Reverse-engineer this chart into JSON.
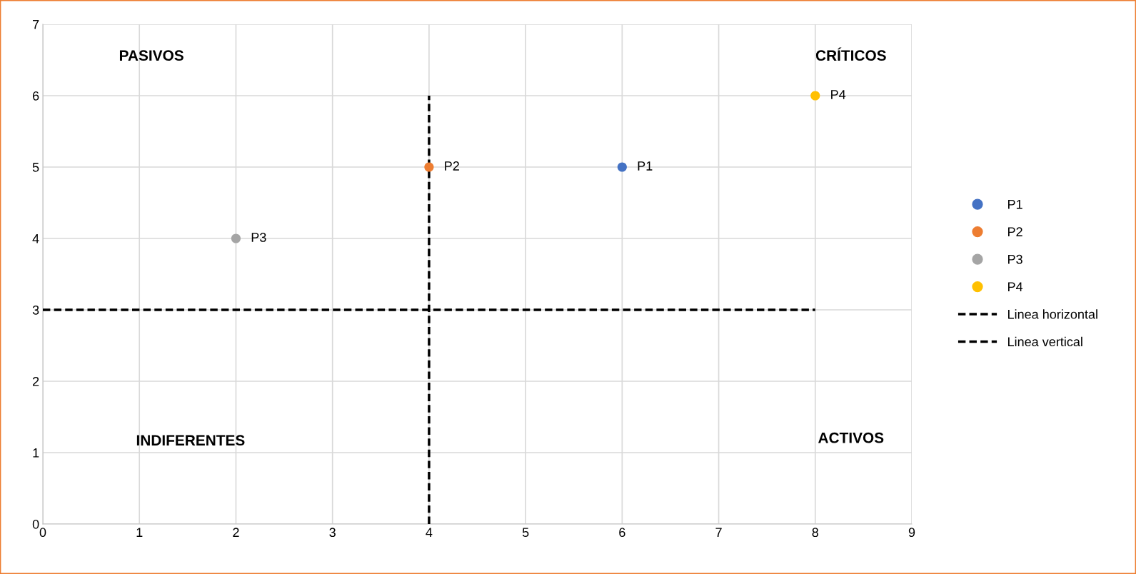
{
  "chart_data": {
    "type": "scatter",
    "series": [
      {
        "name": "P1",
        "color": "#4472c4",
        "x": [
          6
        ],
        "values": [
          5
        ]
      },
      {
        "name": "P2",
        "color": "#ed7d31",
        "x": [
          4
        ],
        "values": [
          5
        ]
      },
      {
        "name": "P3",
        "color": "#a5a5a5",
        "x": [
          2
        ],
        "values": [
          4
        ]
      },
      {
        "name": "P4",
        "color": "#ffc000",
        "x": [
          8
        ],
        "values": [
          6
        ]
      },
      {
        "name": "Linea horizontal",
        "type": "line",
        "color": "#000000",
        "line_style": "dashed",
        "marker": "none",
        "x": [
          0,
          8
        ],
        "values": [
          3,
          3
        ]
      },
      {
        "name": "Linea vertical",
        "type": "line",
        "color": "#000000",
        "line_style": "dashed",
        "marker": "none",
        "x": [
          4,
          4
        ],
        "values": [
          0,
          6
        ]
      }
    ],
    "annotations": [
      "PASIVOS",
      "CRÍTICOS",
      "INDIFERENTES",
      "ACTIVOS"
    ],
    "marker": "circle",
    "xlim": [
      0,
      9
    ],
    "ylim": [
      0,
      7
    ],
    "xticks": [
      0,
      1,
      2,
      3,
      4,
      5,
      6,
      7,
      8,
      9
    ],
    "yticks": [
      0,
      1,
      2,
      3,
      4,
      5,
      6,
      7
    ],
    "grid": true,
    "legend": "right"
  }
}
